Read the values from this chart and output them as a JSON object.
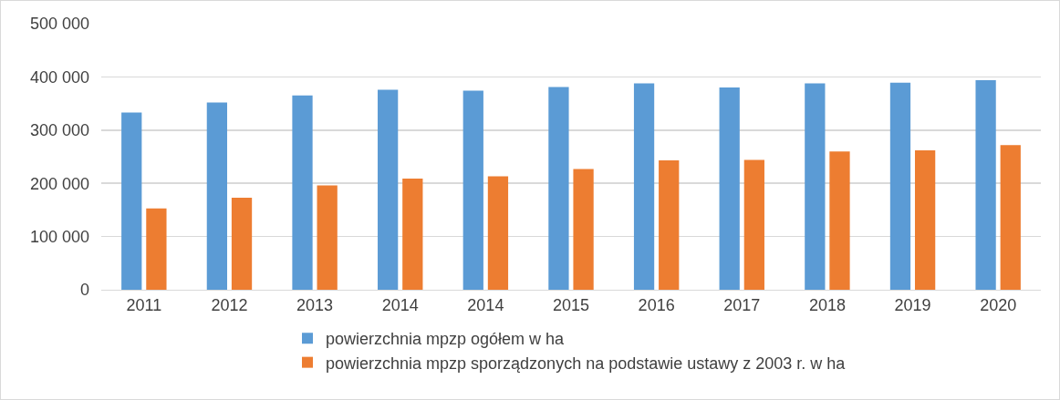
{
  "chart_data": {
    "type": "bar",
    "categories": [
      "2011",
      "2012",
      "2013",
      "2014",
      "2014",
      "2015",
      "2016",
      "2017",
      "2018",
      "2019",
      "2020"
    ],
    "series": [
      {
        "name": "powierzchnia mpzp ogółem w ha",
        "color": "#5b9bd5",
        "values": [
          333000,
          352000,
          365000,
          376000,
          374000,
          381000,
          388000,
          380000,
          388000,
          389000,
          394000
        ]
      },
      {
        "name": "powierzchnia mpzp sporządzonych na podstawie ustawy z 2003 r. w ha",
        "color": "#ed7d31",
        "values": [
          153000,
          173000,
          196000,
          209000,
          213000,
          227000,
          243000,
          244000,
          260000,
          262000,
          272000
        ]
      }
    ],
    "ylim": [
      0,
      500000
    ],
    "yticks": [
      {
        "value": 0,
        "label": "0"
      },
      {
        "value": 100000,
        "label": "100 000"
      },
      {
        "value": 200000,
        "label": "200 000"
      },
      {
        "value": 300000,
        "label": "300 000"
      },
      {
        "value": 400000,
        "label": "400 000"
      },
      {
        "value": 500000,
        "label": "500 000"
      }
    ],
    "grid": "y",
    "legend": "bottom"
  }
}
